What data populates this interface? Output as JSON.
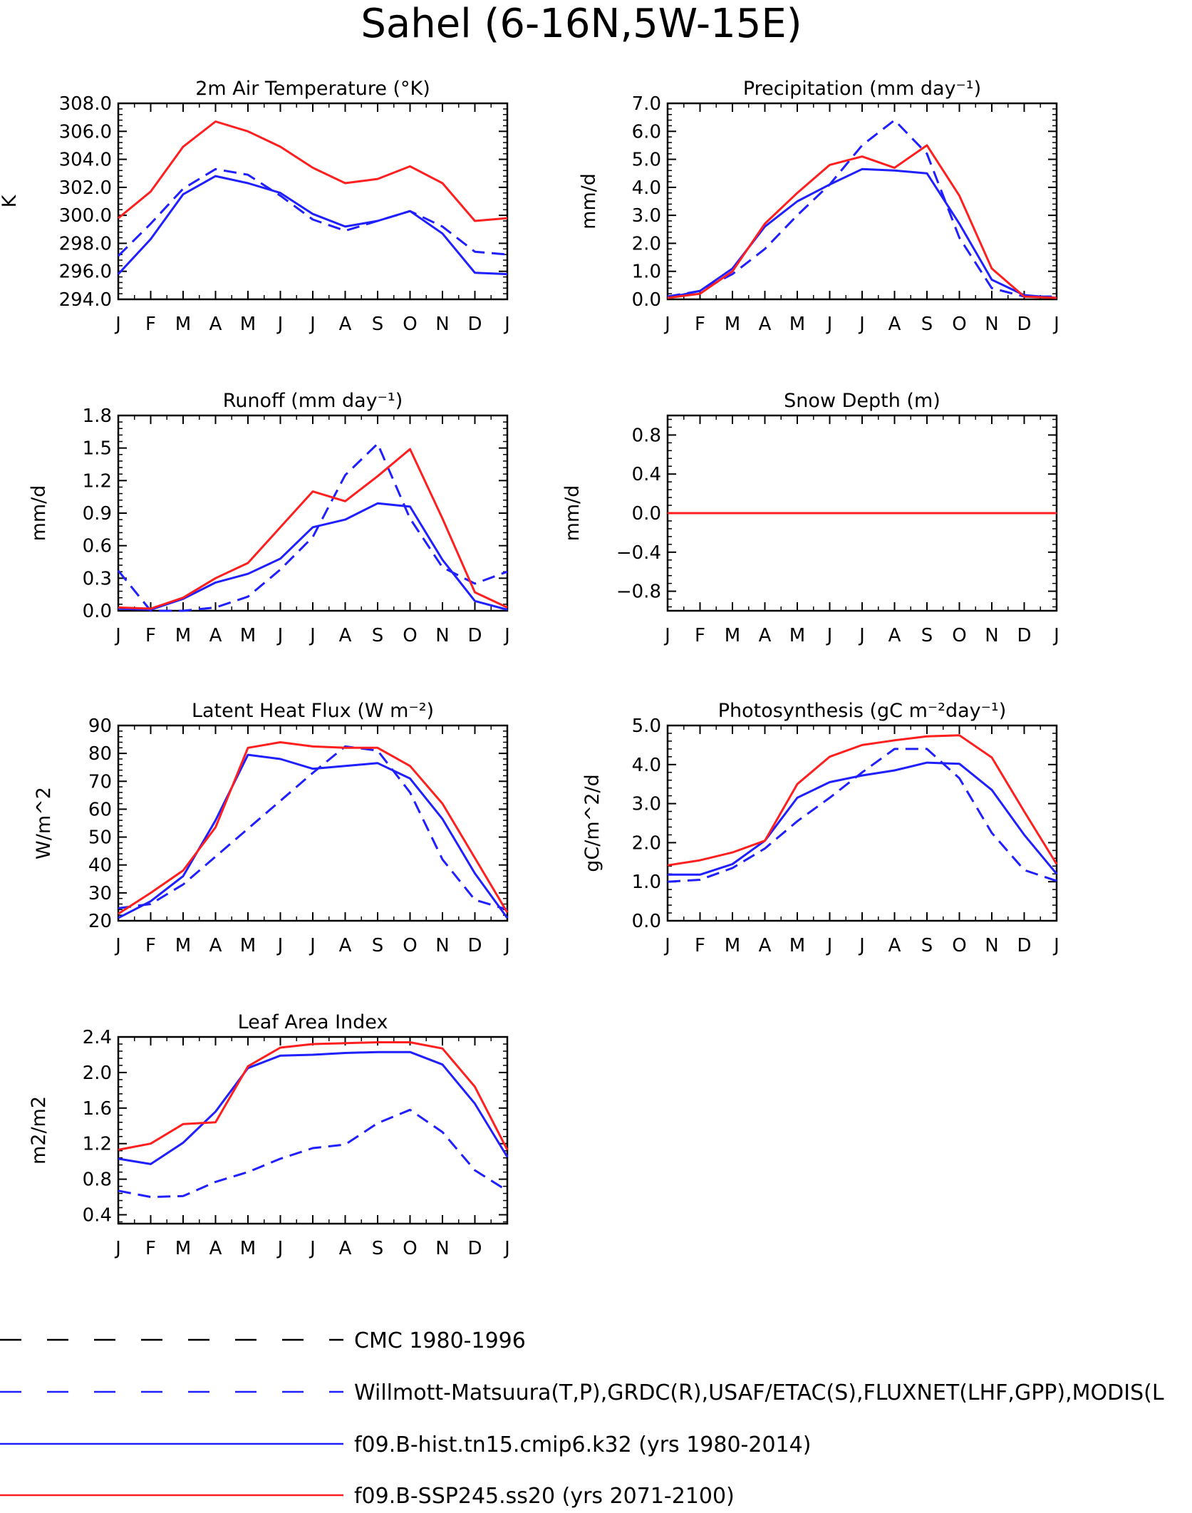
{
  "figure": {
    "title": "Sahel (6-16N,5W-15E)"
  },
  "months": [
    "J",
    "F",
    "M",
    "A",
    "M",
    "J",
    "J",
    "A",
    "S",
    "O",
    "N",
    "D",
    "J"
  ],
  "colors": {
    "black": "#000000",
    "blue": "#1f1fff",
    "red": "#ff1f1f"
  },
  "legend": [
    {
      "label": "CMC 1980-1996",
      "color": "#000000",
      "dashed": true
    },
    {
      "label": "Willmott-Matsuura(T,P),GRDC(R),USAF/ETAC(S),FLUXNET(LHF,GPP),MODIS(L",
      "color": "#1f1fff",
      "dashed": true
    },
    {
      "label": "f09.B-hist.tn15.cmip6.k32 (yrs 1980-2014)",
      "color": "#1f1fff",
      "dashed": false
    },
    {
      "label": "f09.B-SSP245.ss20 (yrs 2071-2100)",
      "color": "#ff1f1f",
      "dashed": false
    }
  ],
  "chart_data": [
    {
      "type": "line",
      "title": "2m Air Temperature (°K)",
      "ylabel": "K",
      "categories": [
        "J",
        "F",
        "M",
        "A",
        "M",
        "J",
        "J",
        "A",
        "S",
        "O",
        "N",
        "D",
        "J"
      ],
      "ylim": [
        294,
        308
      ],
      "yticks": [
        294,
        296,
        298,
        300,
        302,
        304,
        306,
        308
      ],
      "tick_decimals": 1,
      "series": [
        {
          "name": "Willmott-Matsuura(T,P),GRDC(R),USAF/ETAC(S),FLUXNET(LHF,GPP),MODIS(L",
          "dashed": true,
          "color": "#1f1fff",
          "values": [
            297.1,
            299.4,
            301.9,
            303.3,
            302.9,
            301.4,
            299.7,
            298.9,
            299.6,
            300.3,
            299.2,
            297.4,
            297.2
          ]
        },
        {
          "name": "f09.B-hist.tn15.cmip6.k32 (yrs 1980-2014)",
          "dashed": false,
          "color": "#1f1fff",
          "values": [
            295.8,
            298.3,
            301.5,
            302.8,
            302.3,
            301.6,
            300.1,
            299.2,
            299.6,
            300.3,
            298.7,
            295.9,
            295.8
          ]
        },
        {
          "name": "f09.B-SSP245.ss20 (yrs 2071-2100)",
          "dashed": false,
          "color": "#ff1f1f",
          "values": [
            299.8,
            301.7,
            304.9,
            306.7,
            306.0,
            304.9,
            303.4,
            302.3,
            302.6,
            303.5,
            302.3,
            299.6,
            299.8
          ]
        }
      ]
    },
    {
      "type": "line",
      "title": "Precipitation (mm day⁻¹)",
      "ylabel": "mm/d",
      "categories": [
        "J",
        "F",
        "M",
        "A",
        "M",
        "J",
        "J",
        "A",
        "S",
        "O",
        "N",
        "D",
        "J"
      ],
      "ylim": [
        0,
        7
      ],
      "yticks": [
        0,
        1,
        2,
        3,
        4,
        5,
        6,
        7
      ],
      "tick_decimals": 1,
      "series": [
        {
          "name": "Willmott-Matsuura(T,P),GRDC(R),USAF/ETAC(S),FLUXNET(LHF,GPP),MODIS(L",
          "dashed": true,
          "color": "#1f1fff",
          "values": [
            0.1,
            0.3,
            0.9,
            1.8,
            3.0,
            4.1,
            5.5,
            6.4,
            5.2,
            2.2,
            0.4,
            0.1,
            0.1
          ]
        },
        {
          "name": "f09.B-hist.tn15.cmip6.k32 (yrs 1980-2014)",
          "dashed": false,
          "color": "#1f1fff",
          "values": [
            0.05,
            0.3,
            1.1,
            2.6,
            3.5,
            4.1,
            4.65,
            4.6,
            4.5,
            2.7,
            0.7,
            0.15,
            0.05
          ]
        },
        {
          "name": "f09.B-SSP245.ss20 (yrs 2071-2100)",
          "dashed": false,
          "color": "#ff1f1f",
          "values": [
            0.05,
            0.2,
            1.0,
            2.7,
            3.8,
            4.8,
            5.1,
            4.7,
            5.5,
            3.7,
            1.1,
            0.1,
            0.05
          ]
        }
      ]
    },
    {
      "type": "line",
      "title": "Runoff (mm day⁻¹)",
      "ylabel": "mm/d",
      "categories": [
        "J",
        "F",
        "M",
        "A",
        "M",
        "J",
        "J",
        "A",
        "S",
        "O",
        "N",
        "D",
        "J"
      ],
      "ylim": [
        0,
        1.8
      ],
      "yticks": [
        0,
        0.3,
        0.6,
        0.9,
        1.2,
        1.5,
        1.8
      ],
      "tick_decimals": 1,
      "series": [
        {
          "name": "Willmott-Matsuura(T,P),GRDC(R),USAF/ETAC(S),FLUXNET(LHF,GPP),MODIS(L",
          "dashed": true,
          "color": "#1f1fff",
          "values": [
            0.37,
            0.0,
            0.0,
            0.03,
            0.13,
            0.38,
            0.68,
            1.25,
            1.54,
            0.85,
            0.4,
            0.25,
            0.36
          ]
        },
        {
          "name": "f09.B-hist.tn15.cmip6.k32 (yrs 1980-2014)",
          "dashed": false,
          "color": "#1f1fff",
          "values": [
            0.02,
            0.01,
            0.11,
            0.26,
            0.34,
            0.48,
            0.77,
            0.84,
            0.99,
            0.96,
            0.47,
            0.09,
            0.01
          ]
        },
        {
          "name": "f09.B-SSP245.ss20 (yrs 2071-2100)",
          "dashed": false,
          "color": "#ff1f1f",
          "values": [
            0.03,
            0.02,
            0.12,
            0.3,
            0.44,
            0.77,
            1.1,
            1.01,
            1.24,
            1.49,
            0.85,
            0.17,
            0.03
          ]
        }
      ]
    },
    {
      "type": "line",
      "title": "Snow Depth (m)",
      "ylabel": "mm/d",
      "categories": [
        "J",
        "F",
        "M",
        "A",
        "M",
        "J",
        "J",
        "A",
        "S",
        "O",
        "N",
        "D",
        "J"
      ],
      "ylim": [
        -1.0,
        1.0
      ],
      "yticks": [
        -0.8,
        -0.4,
        0.0,
        0.4,
        0.8
      ],
      "tick_decimals": 1,
      "series": [
        {
          "name": "Willmott-Matsuura(T,P),GRDC(R),USAF/ETAC(S),FLUXNET(LHF,GPP),MODIS(L",
          "dashed": true,
          "color": "#1f1fff",
          "values": [
            0,
            0,
            0,
            0,
            0,
            0,
            0,
            0,
            0,
            0,
            0,
            0,
            0
          ]
        },
        {
          "name": "f09.B-hist.tn15.cmip6.k32 (yrs 1980-2014)",
          "dashed": false,
          "color": "#1f1fff",
          "values": [
            0,
            0,
            0,
            0,
            0,
            0,
            0,
            0,
            0,
            0,
            0,
            0,
            0
          ]
        },
        {
          "name": "f09.B-SSP245.ss20 (yrs 2071-2100)",
          "dashed": false,
          "color": "#ff1f1f",
          "values": [
            0,
            0,
            0,
            0,
            0,
            0,
            0,
            0,
            0,
            0,
            0,
            0,
            0
          ]
        }
      ]
    },
    {
      "type": "line",
      "title": "Latent Heat Flux (W m⁻²)",
      "ylabel": "W/m^2",
      "categories": [
        "J",
        "F",
        "M",
        "A",
        "M",
        "J",
        "J",
        "A",
        "S",
        "O",
        "N",
        "D",
        "J"
      ],
      "ylim": [
        20,
        90
      ],
      "yticks": [
        20,
        30,
        40,
        50,
        60,
        70,
        80,
        90
      ],
      "tick_decimals": 0,
      "series": [
        {
          "name": "Willmott-Matsuura(T,P),GRDC(R),USAF/ETAC(S),FLUXNET(LHF,GPP),MODIS(L",
          "dashed": true,
          "color": "#1f1fff",
          "values": [
            24.5,
            26.0,
            33.0,
            43.0,
            53.0,
            63.0,
            73.0,
            82.5,
            81.0,
            66.0,
            42.0,
            27.5,
            24.0
          ]
        },
        {
          "name": "f09.B-hist.tn15.cmip6.k32 (yrs 1980-2014)",
          "dashed": false,
          "color": "#1f1fff",
          "values": [
            21.0,
            27.0,
            36.0,
            56.0,
            79.5,
            78.0,
            74.5,
            75.5,
            76.5,
            71.0,
            56.5,
            37.0,
            21.0
          ]
        },
        {
          "name": "f09.B-SSP245.ss20 (yrs 2071-2100)",
          "dashed": false,
          "color": "#ff1f1f",
          "values": [
            22.5,
            30.0,
            38.0,
            53.5,
            82.0,
            84.0,
            82.5,
            82.0,
            82.0,
            75.5,
            62.0,
            42.5,
            23.0
          ]
        }
      ]
    },
    {
      "type": "line",
      "title": "Photosynthesis (gC m⁻²day⁻¹)",
      "ylabel": "gC/m^2/d",
      "categories": [
        "J",
        "F",
        "M",
        "A",
        "M",
        "J",
        "J",
        "A",
        "S",
        "O",
        "N",
        "D",
        "J"
      ],
      "ylim": [
        0,
        5
      ],
      "yticks": [
        0,
        1,
        2,
        3,
        4,
        5
      ],
      "tick_decimals": 1,
      "series": [
        {
          "name": "Willmott-Matsuura(T,P),GRDC(R),USAF/ETAC(S),FLUXNET(LHF,GPP),MODIS(L",
          "dashed": true,
          "color": "#1f1fff",
          "values": [
            1.0,
            1.05,
            1.35,
            1.85,
            2.55,
            3.15,
            3.8,
            4.4,
            4.4,
            3.65,
            2.25,
            1.3,
            1.02
          ]
        },
        {
          "name": "f09.B-hist.tn15.cmip6.k32 (yrs 1980-2014)",
          "dashed": false,
          "color": "#1f1fff",
          "values": [
            1.18,
            1.18,
            1.45,
            2.05,
            3.15,
            3.55,
            3.72,
            3.85,
            4.05,
            4.02,
            3.35,
            2.2,
            1.2
          ]
        },
        {
          "name": "f09.B-SSP245.ss20 (yrs 2071-2100)",
          "dashed": false,
          "color": "#ff1f1f",
          "values": [
            1.42,
            1.55,
            1.75,
            2.05,
            3.5,
            4.2,
            4.5,
            4.62,
            4.72,
            4.75,
            4.18,
            2.8,
            1.45
          ]
        }
      ]
    },
    {
      "type": "line",
      "title": "Leaf Area Index",
      "ylabel": "m2/m2",
      "categories": [
        "J",
        "F",
        "M",
        "A",
        "M",
        "J",
        "J",
        "A",
        "S",
        "O",
        "N",
        "D",
        "J"
      ],
      "ylim": [
        0.3,
        2.4
      ],
      "yticks": [
        0.4,
        0.8,
        1.2,
        1.6,
        2.0,
        2.4
      ],
      "tick_decimals": 1,
      "series": [
        {
          "name": "Willmott-Matsuura(T,P),GRDC(R),USAF/ETAC(S),FLUXNET(LHF,GPP),MODIS(L",
          "dashed": true,
          "color": "#1f1fff",
          "values": [
            0.67,
            0.6,
            0.61,
            0.77,
            0.88,
            1.03,
            1.15,
            1.19,
            1.43,
            1.58,
            1.33,
            0.9,
            0.67
          ]
        },
        {
          "name": "f09.B-hist.tn15.cmip6.k32 (yrs 1980-2014)",
          "dashed": false,
          "color": "#1f1fff",
          "values": [
            1.03,
            0.97,
            1.21,
            1.56,
            2.05,
            2.19,
            2.2,
            2.22,
            2.23,
            2.23,
            2.09,
            1.65,
            1.05
          ]
        },
        {
          "name": "f09.B-SSP245.ss20 (yrs 2071-2100)",
          "dashed": false,
          "color": "#ff1f1f",
          "values": [
            1.13,
            1.2,
            1.42,
            1.44,
            2.07,
            2.28,
            2.32,
            2.33,
            2.34,
            2.34,
            2.27,
            1.84,
            1.13
          ]
        }
      ]
    }
  ]
}
